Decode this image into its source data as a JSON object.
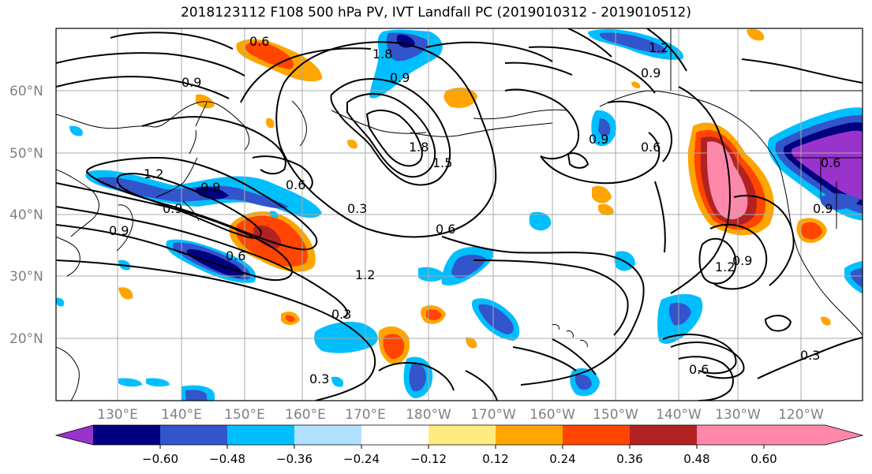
{
  "title": "2018123112 F108 500 hPa PV, IVT Landfall PC (2019010312 - 2019010512)",
  "lat_labels": [
    "60°N",
    "50°N",
    "40°N",
    "30°N",
    "20°N"
  ],
  "lon_labels": [
    "130°E",
    "140°E",
    "150°E",
    "160°E",
    "170°E",
    "180°W",
    "170°W",
    "160°W",
    "150°W",
    "140°W",
    "130°W",
    "120°W"
  ],
  "colorbar": {
    "ticks": [
      "−0.60",
      "−0.48",
      "−0.36",
      "−0.24",
      "−0.12",
      "0.12",
      "0.24",
      "0.36",
      "0.48",
      "0.60"
    ],
    "colors": [
      "#9933cc",
      "#000080",
      "#3355cc",
      "#00bfff",
      "#b0e0ff",
      "#ffffff",
      "#ffea80",
      "#ffa500",
      "#ff4500",
      "#b22222",
      "#ff88aa"
    ]
  },
  "contour_labels": [
    "0.6",
    "1.8",
    "0.9",
    "1.2",
    "0.9",
    "1.8",
    "1.5",
    "1.2",
    "0.9",
    "0.6",
    "0.9",
    "0.3",
    "0.6",
    "0.6",
    "0.9",
    "1.2",
    "0.9",
    "0.3",
    "0.3",
    "0.6",
    "0.3",
    "0.6",
    "0.9",
    "0.9",
    "1.2",
    "0.6",
    "0.9"
  ]
}
